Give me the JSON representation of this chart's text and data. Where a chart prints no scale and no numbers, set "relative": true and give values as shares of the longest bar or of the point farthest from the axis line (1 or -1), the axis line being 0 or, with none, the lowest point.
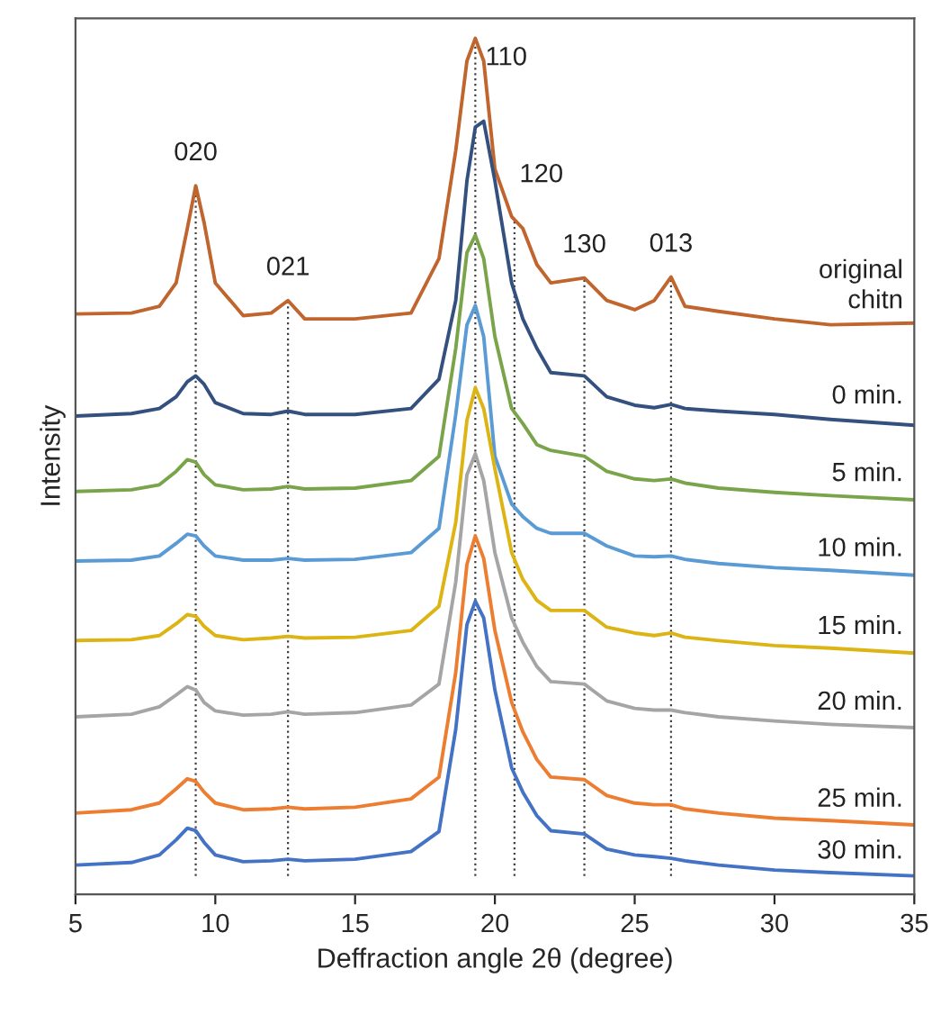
{
  "chart_data": {
    "type": "line",
    "relative": true,
    "xlabel": "Deffraction angle 2θ (degree)",
    "ylabel": "Intensity",
    "xlim": [
      5,
      35
    ],
    "xticks": [
      5,
      10,
      15,
      20,
      25,
      30,
      35
    ],
    "grid": false,
    "legend": false,
    "marker": "none",
    "line_style": "solid",
    "x": [
      5,
      7,
      8,
      8.6,
      9.0,
      9.3,
      9.6,
      10,
      11,
      12,
      12.6,
      13.2,
      15,
      17,
      18,
      18.6,
      19.0,
      19.3,
      19.6,
      20.0,
      20.6,
      21,
      21.5,
      22,
      23.2,
      24,
      25,
      25.7,
      26.3,
      26.8,
      28,
      30,
      32,
      35
    ],
    "series": [
      {
        "name": "original\nchitn",
        "color": "#c0652e",
        "values": [
          0.671,
          0.672,
          0.68,
          0.708,
          0.773,
          0.824,
          0.78,
          0.708,
          0.669,
          0.672,
          0.687,
          0.665,
          0.665,
          0.672,
          0.737,
          0.866,
          0.973,
          1.0,
          0.973,
          0.844,
          0.787,
          0.773,
          0.73,
          0.708,
          0.714,
          0.687,
          0.676,
          0.687,
          0.715,
          0.68,
          0.674,
          0.665,
          0.658,
          0.66
        ]
      },
      {
        "name": "0 min.",
        "color": "#34507e",
        "values": [
          0.549,
          0.552,
          0.558,
          0.572,
          0.59,
          0.597,
          0.587,
          0.565,
          0.552,
          0.551,
          0.555,
          0.551,
          0.551,
          0.558,
          0.593,
          0.687,
          0.83,
          0.894,
          0.901,
          0.83,
          0.708,
          0.665,
          0.63,
          0.601,
          0.597,
          0.572,
          0.562,
          0.559,
          0.563,
          0.558,
          0.555,
          0.551,
          0.545,
          0.538
        ]
      },
      {
        "name": "5 min.",
        "color": "#7aa44a",
        "values": [
          0.459,
          0.461,
          0.467,
          0.483,
          0.497,
          0.494,
          0.479,
          0.467,
          0.461,
          0.462,
          0.465,
          0.462,
          0.463,
          0.472,
          0.501,
          0.63,
          0.744,
          0.765,
          0.737,
          0.644,
          0.558,
          0.54,
          0.515,
          0.508,
          0.501,
          0.483,
          0.474,
          0.472,
          0.474,
          0.469,
          0.463,
          0.458,
          0.454,
          0.449
        ]
      },
      {
        "name": "10 min.",
        "color": "#5b9bd5",
        "values": [
          0.376,
          0.377,
          0.382,
          0.397,
          0.408,
          0.406,
          0.394,
          0.382,
          0.377,
          0.377,
          0.379,
          0.377,
          0.378,
          0.386,
          0.415,
          0.551,
          0.658,
          0.681,
          0.644,
          0.501,
          0.444,
          0.429,
          0.415,
          0.409,
          0.409,
          0.394,
          0.382,
          0.381,
          0.382,
          0.378,
          0.373,
          0.368,
          0.365,
          0.359
        ]
      },
      {
        "name": "15 min.",
        "color": "#dcb414",
        "values": [
          0.281,
          0.282,
          0.287,
          0.301,
          0.312,
          0.31,
          0.298,
          0.287,
          0.282,
          0.284,
          0.286,
          0.284,
          0.285,
          0.293,
          0.322,
          0.422,
          0.544,
          0.583,
          0.558,
          0.486,
          0.386,
          0.354,
          0.329,
          0.317,
          0.317,
          0.297,
          0.29,
          0.287,
          0.29,
          0.285,
          0.281,
          0.275,
          0.272,
          0.266
        ]
      },
      {
        "name": "20 min.",
        "color": "#a5a5a5",
        "values": [
          0.19,
          0.193,
          0.202,
          0.216,
          0.226,
          0.222,
          0.207,
          0.197,
          0.192,
          0.193,
          0.196,
          0.193,
          0.195,
          0.204,
          0.229,
          0.351,
          0.479,
          0.504,
          0.472,
          0.386,
          0.308,
          0.279,
          0.25,
          0.232,
          0.229,
          0.209,
          0.2,
          0.198,
          0.198,
          0.195,
          0.19,
          0.185,
          0.181,
          0.177
        ]
      },
      {
        "name": "25 min.",
        "color": "#ed7d31",
        "values": [
          0.075,
          0.079,
          0.087,
          0.104,
          0.116,
          0.113,
          0.1,
          0.087,
          0.079,
          0.08,
          0.082,
          0.08,
          0.082,
          0.092,
          0.118,
          0.243,
          0.372,
          0.406,
          0.379,
          0.293,
          0.207,
          0.172,
          0.139,
          0.118,
          0.115,
          0.096,
          0.087,
          0.085,
          0.085,
          0.08,
          0.075,
          0.069,
          0.066,
          0.061
        ]
      },
      {
        "name": "30 min.",
        "color": "#4472c4",
        "values": [
          0.013,
          0.016,
          0.025,
          0.043,
          0.057,
          0.054,
          0.04,
          0.025,
          0.017,
          0.018,
          0.02,
          0.018,
          0.02,
          0.029,
          0.053,
          0.175,
          0.3,
          0.328,
          0.308,
          0.222,
          0.129,
          0.1,
          0.072,
          0.054,
          0.05,
          0.032,
          0.025,
          0.023,
          0.021,
          0.018,
          0.013,
          0.007,
          0.004,
          0.0
        ]
      }
    ],
    "ref_lines": [
      {
        "axis": "x",
        "value": 9.3,
        "color": "#404040",
        "line_style": "dotted"
      },
      {
        "axis": "x",
        "value": 12.6,
        "color": "#404040",
        "line_style": "dotted"
      },
      {
        "axis": "x",
        "value": 19.3,
        "color": "#404040",
        "line_style": "dotted"
      },
      {
        "axis": "x",
        "value": 20.7,
        "color": "#404040",
        "line_style": "dotted"
      },
      {
        "axis": "x",
        "value": 23.2,
        "color": "#404040",
        "line_style": "dotted"
      },
      {
        "axis": "x",
        "value": 26.3,
        "color": "#404040",
        "line_style": "dotted"
      }
    ],
    "annotations": [
      {
        "text": "020",
        "x": 9.3,
        "y": 0.824
      },
      {
        "text": "021",
        "x": 12.6,
        "y": 0.687
      },
      {
        "text": "110",
        "x": 19.3,
        "y": 1.0
      },
      {
        "text": "120",
        "x": 20.7,
        "y": 0.78
      },
      {
        "text": "130",
        "x": 23.2,
        "y": 0.714
      },
      {
        "text": "013",
        "x": 26.3,
        "y": 0.715
      }
    ]
  }
}
